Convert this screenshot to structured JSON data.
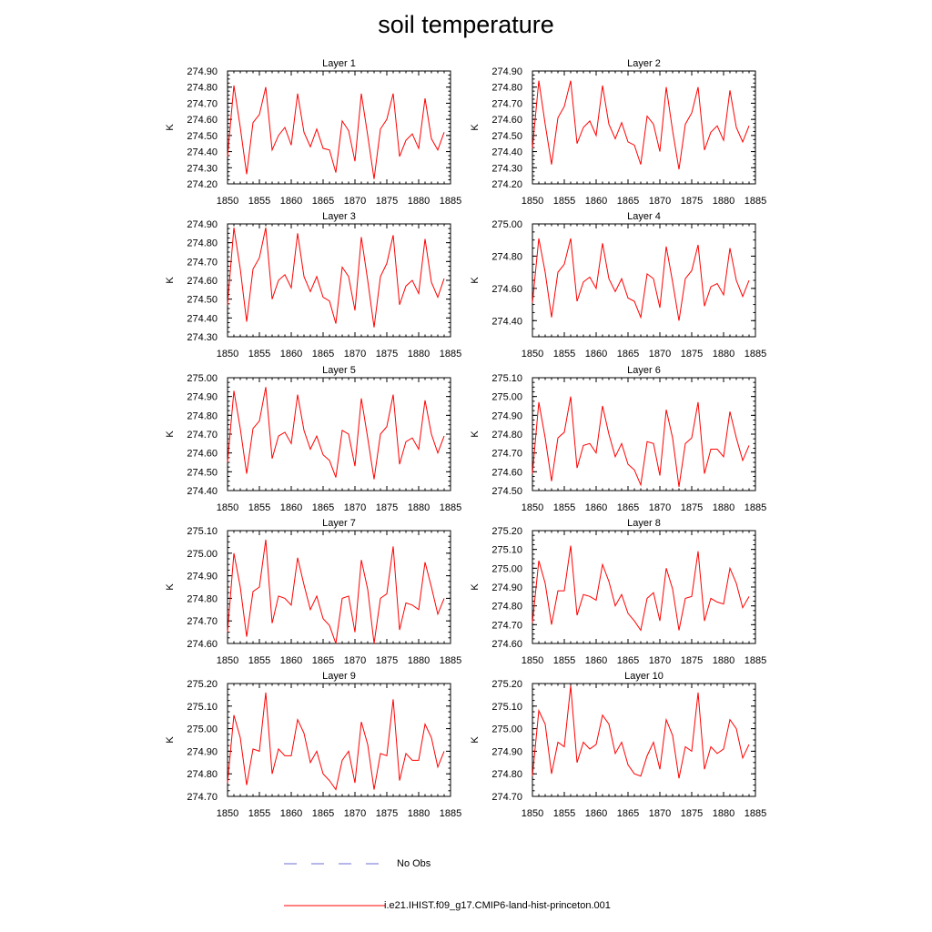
{
  "title": "soil temperature",
  "legend": {
    "entries": [
      {
        "label": "No Obs",
        "color": "#6d6dd6",
        "style": "dashed"
      },
      {
        "label": "i.e21.IHIST.f09_g17.CMIP6-land-hist-princeton.001",
        "color": "#ff0000",
        "style": "solid"
      }
    ]
  },
  "chart_data": [
    {
      "type": "line",
      "title": "Layer 1",
      "ylabel": "K",
      "xlim": [
        1850,
        1885
      ],
      "ylim": [
        274.2,
        274.9
      ],
      "xticks": [
        1850,
        1855,
        1860,
        1865,
        1870,
        1875,
        1880,
        1885
      ],
      "yticks": [
        274.2,
        274.3,
        274.4,
        274.5,
        274.6,
        274.7,
        274.8,
        274.9
      ],
      "ytick_decimals": 2,
      "x": [
        1850,
        1851,
        1852,
        1853,
        1854,
        1855,
        1856,
        1857,
        1858,
        1859,
        1860,
        1861,
        1862,
        1863,
        1864,
        1865,
        1866,
        1867,
        1868,
        1869,
        1870,
        1871,
        1872,
        1873,
        1874,
        1875,
        1876,
        1877,
        1878,
        1879,
        1880,
        1881,
        1882,
        1883,
        1884
      ],
      "series": [
        {
          "color": "#ff0000",
          "values": [
            274.37,
            274.81,
            274.55,
            274.26,
            274.58,
            274.63,
            274.8,
            274.41,
            274.5,
            274.55,
            274.44,
            274.76,
            274.52,
            274.43,
            274.54,
            274.42,
            274.41,
            274.27,
            274.59,
            274.53,
            274.34,
            274.76,
            274.5,
            274.23,
            274.54,
            274.6,
            274.76,
            274.37,
            274.47,
            274.51,
            274.42,
            274.73,
            274.48,
            274.41,
            274.52
          ]
        }
      ]
    },
    {
      "type": "line",
      "title": "Layer 2",
      "ylabel": "K",
      "xlim": [
        1850,
        1885
      ],
      "ylim": [
        274.2,
        274.9
      ],
      "xticks": [
        1850,
        1855,
        1860,
        1865,
        1870,
        1875,
        1880,
        1885
      ],
      "yticks": [
        274.2,
        274.3,
        274.4,
        274.5,
        274.6,
        274.7,
        274.8,
        274.9
      ],
      "ytick_decimals": 2,
      "x": [
        1850,
        1851,
        1852,
        1853,
        1854,
        1855,
        1856,
        1857,
        1858,
        1859,
        1860,
        1861,
        1862,
        1863,
        1864,
        1865,
        1866,
        1867,
        1868,
        1869,
        1870,
        1871,
        1872,
        1873,
        1874,
        1875,
        1876,
        1877,
        1878,
        1879,
        1880,
        1881,
        1882,
        1883,
        1884
      ],
      "series": [
        {
          "color": "#ff0000",
          "values": [
            274.42,
            274.84,
            274.57,
            274.32,
            274.61,
            274.68,
            274.84,
            274.45,
            274.55,
            274.59,
            274.5,
            274.81,
            274.57,
            274.48,
            274.58,
            274.46,
            274.44,
            274.32,
            274.62,
            274.57,
            274.4,
            274.8,
            274.53,
            274.29,
            274.57,
            274.64,
            274.8,
            274.41,
            274.52,
            274.56,
            274.47,
            274.78,
            274.55,
            274.46,
            274.56
          ]
        }
      ]
    },
    {
      "type": "line",
      "title": "Layer 3",
      "ylabel": "K",
      "xlim": [
        1850,
        1885
      ],
      "ylim": [
        274.3,
        274.9
      ],
      "xticks": [
        1850,
        1855,
        1860,
        1865,
        1870,
        1875,
        1880,
        1885
      ],
      "yticks": [
        274.3,
        274.4,
        274.5,
        274.6,
        274.7,
        274.8,
        274.9
      ],
      "ytick_decimals": 2,
      "x": [
        1850,
        1851,
        1852,
        1853,
        1854,
        1855,
        1856,
        1857,
        1858,
        1859,
        1860,
        1861,
        1862,
        1863,
        1864,
        1865,
        1866,
        1867,
        1868,
        1869,
        1870,
        1871,
        1872,
        1873,
        1874,
        1875,
        1876,
        1877,
        1878,
        1879,
        1880,
        1881,
        1882,
        1883,
        1884
      ],
      "series": [
        {
          "color": "#ff0000",
          "values": [
            274.47,
            274.88,
            274.66,
            274.38,
            274.66,
            274.72,
            274.88,
            274.5,
            274.6,
            274.63,
            274.56,
            274.85,
            274.62,
            274.54,
            274.62,
            274.51,
            274.49,
            274.37,
            274.67,
            274.62,
            274.44,
            274.83,
            274.6,
            274.35,
            274.62,
            274.69,
            274.84,
            274.47,
            274.57,
            274.6,
            274.53,
            274.82,
            274.59,
            274.51,
            274.61
          ]
        }
      ]
    },
    {
      "type": "line",
      "title": "Layer 4",
      "ylabel": "K",
      "xlim": [
        1850,
        1885
      ],
      "ylim": [
        274.3,
        275.0
      ],
      "xticks": [
        1850,
        1855,
        1860,
        1865,
        1870,
        1875,
        1880,
        1885
      ],
      "yticks": [
        274.4,
        274.6,
        274.8,
        275.0
      ],
      "ytick_decimals": 2,
      "x": [
        1850,
        1851,
        1852,
        1853,
        1854,
        1855,
        1856,
        1857,
        1858,
        1859,
        1860,
        1861,
        1862,
        1863,
        1864,
        1865,
        1866,
        1867,
        1868,
        1869,
        1870,
        1871,
        1872,
        1873,
        1874,
        1875,
        1876,
        1877,
        1878,
        1879,
        1880,
        1881,
        1882,
        1883,
        1884
      ],
      "series": [
        {
          "color": "#ff0000",
          "values": [
            274.51,
            274.91,
            274.7,
            274.42,
            274.7,
            274.75,
            274.91,
            274.52,
            274.64,
            274.67,
            274.6,
            274.88,
            274.66,
            274.58,
            274.66,
            274.54,
            274.52,
            274.42,
            274.69,
            274.66,
            274.48,
            274.86,
            274.64,
            274.4,
            274.66,
            274.71,
            274.87,
            274.49,
            274.61,
            274.63,
            274.56,
            274.85,
            274.65,
            274.55,
            274.65
          ]
        }
      ]
    },
    {
      "type": "line",
      "title": "Layer 5",
      "ylabel": "K",
      "xlim": [
        1850,
        1885
      ],
      "ylim": [
        274.4,
        275.0
      ],
      "xticks": [
        1850,
        1855,
        1860,
        1865,
        1870,
        1875,
        1880,
        1885
      ],
      "yticks": [
        274.4,
        274.5,
        274.6,
        274.7,
        274.8,
        274.9,
        275.0
      ],
      "ytick_decimals": 2,
      "x": [
        1850,
        1851,
        1852,
        1853,
        1854,
        1855,
        1856,
        1857,
        1858,
        1859,
        1860,
        1861,
        1862,
        1863,
        1864,
        1865,
        1866,
        1867,
        1868,
        1869,
        1870,
        1871,
        1872,
        1873,
        1874,
        1875,
        1876,
        1877,
        1878,
        1879,
        1880,
        1881,
        1882,
        1883,
        1884
      ],
      "series": [
        {
          "color": "#ff0000",
          "values": [
            274.55,
            274.93,
            274.73,
            274.49,
            274.73,
            274.77,
            274.95,
            274.57,
            274.69,
            274.71,
            274.65,
            274.91,
            274.72,
            274.62,
            274.69,
            274.59,
            274.56,
            274.47,
            274.72,
            274.7,
            274.53,
            274.89,
            274.68,
            274.46,
            274.7,
            274.74,
            274.91,
            274.54,
            274.66,
            274.68,
            274.62,
            274.88,
            274.7,
            274.6,
            274.69
          ]
        }
      ]
    },
    {
      "type": "line",
      "title": "Layer 6",
      "ylabel": "K",
      "xlim": [
        1850,
        1885
      ],
      "ylim": [
        274.5,
        275.1
      ],
      "xticks": [
        1850,
        1855,
        1860,
        1865,
        1870,
        1875,
        1880,
        1885
      ],
      "yticks": [
        274.5,
        274.6,
        274.7,
        274.8,
        274.9,
        275.0,
        275.1
      ],
      "ytick_decimals": 2,
      "x": [
        1850,
        1851,
        1852,
        1853,
        1854,
        1855,
        1856,
        1857,
        1858,
        1859,
        1860,
        1861,
        1862,
        1863,
        1864,
        1865,
        1866,
        1867,
        1868,
        1869,
        1870,
        1871,
        1872,
        1873,
        1874,
        1875,
        1876,
        1877,
        1878,
        1879,
        1880,
        1881,
        1882,
        1883,
        1884
      ],
      "series": [
        {
          "color": "#ff0000",
          "values": [
            274.59,
            274.97,
            274.78,
            274.55,
            274.78,
            274.81,
            275.0,
            274.62,
            274.74,
            274.75,
            274.7,
            274.95,
            274.8,
            274.68,
            274.75,
            274.64,
            274.61,
            274.53,
            274.76,
            274.75,
            274.58,
            274.93,
            274.78,
            274.52,
            274.75,
            274.78,
            274.97,
            274.59,
            274.72,
            274.72,
            274.68,
            274.92,
            274.78,
            274.66,
            274.74
          ]
        }
      ]
    },
    {
      "type": "line",
      "title": "Layer 7",
      "ylabel": "K",
      "xlim": [
        1850,
        1885
      ],
      "ylim": [
        274.6,
        275.1
      ],
      "xticks": [
        1850,
        1855,
        1860,
        1865,
        1870,
        1875,
        1880,
        1885
      ],
      "yticks": [
        274.6,
        274.7,
        274.8,
        274.9,
        275.0,
        275.1
      ],
      "ytick_decimals": 2,
      "x": [
        1850,
        1851,
        1852,
        1853,
        1854,
        1855,
        1856,
        1857,
        1858,
        1859,
        1860,
        1861,
        1862,
        1863,
        1864,
        1865,
        1866,
        1867,
        1868,
        1869,
        1870,
        1871,
        1872,
        1873,
        1874,
        1875,
        1876,
        1877,
        1878,
        1879,
        1880,
        1881,
        1882,
        1883,
        1884
      ],
      "series": [
        {
          "color": "#ff0000",
          "values": [
            274.65,
            275.0,
            274.85,
            274.63,
            274.83,
            274.85,
            275.06,
            274.69,
            274.81,
            274.8,
            274.77,
            274.98,
            274.86,
            274.75,
            274.81,
            274.71,
            274.68,
            274.6,
            274.8,
            274.81,
            274.65,
            274.97,
            274.84,
            274.6,
            274.8,
            274.82,
            275.03,
            274.66,
            274.78,
            274.77,
            274.75,
            274.96,
            274.85,
            274.73,
            274.8
          ]
        }
      ]
    },
    {
      "type": "line",
      "title": "Layer 8",
      "ylabel": "K",
      "xlim": [
        1850,
        1885
      ],
      "ylim": [
        274.6,
        275.2
      ],
      "xticks": [
        1850,
        1855,
        1860,
        1865,
        1870,
        1875,
        1880,
        1885
      ],
      "yticks": [
        274.6,
        274.7,
        274.8,
        274.9,
        275.0,
        275.1,
        275.2
      ],
      "ytick_decimals": 2,
      "x": [
        1850,
        1851,
        1852,
        1853,
        1854,
        1855,
        1856,
        1857,
        1858,
        1859,
        1860,
        1861,
        1862,
        1863,
        1864,
        1865,
        1866,
        1867,
        1868,
        1869,
        1870,
        1871,
        1872,
        1873,
        1874,
        1875,
        1876,
        1877,
        1878,
        1879,
        1880,
        1881,
        1882,
        1883,
        1884
      ],
      "series": [
        {
          "color": "#ff0000",
          "values": [
            274.71,
            275.04,
            274.92,
            274.7,
            274.88,
            274.88,
            275.12,
            274.75,
            274.86,
            274.85,
            274.83,
            275.02,
            274.93,
            274.8,
            274.86,
            274.76,
            274.72,
            274.67,
            274.84,
            274.87,
            274.72,
            275.0,
            274.89,
            274.67,
            274.84,
            274.85,
            275.09,
            274.72,
            274.84,
            274.82,
            274.81,
            275.0,
            274.92,
            274.79,
            274.85
          ]
        }
      ]
    },
    {
      "type": "line",
      "title": "Layer 9",
      "ylabel": "K",
      "xlim": [
        1850,
        1885
      ],
      "ylim": [
        274.7,
        275.2
      ],
      "xticks": [
        1850,
        1855,
        1860,
        1865,
        1870,
        1875,
        1880,
        1885
      ],
      "yticks": [
        274.7,
        274.8,
        274.9,
        275.0,
        275.1,
        275.2
      ],
      "ytick_decimals": 2,
      "x": [
        1850,
        1851,
        1852,
        1853,
        1854,
        1855,
        1856,
        1857,
        1858,
        1859,
        1860,
        1861,
        1862,
        1863,
        1864,
        1865,
        1866,
        1867,
        1868,
        1869,
        1870,
        1871,
        1872,
        1873,
        1874,
        1875,
        1876,
        1877,
        1878,
        1879,
        1880,
        1881,
        1882,
        1883,
        1884
      ],
      "series": [
        {
          "color": "#ff0000",
          "values": [
            274.76,
            275.06,
            274.96,
            274.75,
            274.91,
            274.9,
            275.16,
            274.8,
            274.91,
            274.88,
            274.88,
            275.04,
            274.98,
            274.85,
            274.9,
            274.8,
            274.77,
            274.73,
            274.86,
            274.9,
            274.76,
            275.03,
            274.93,
            274.73,
            274.89,
            274.88,
            275.13,
            274.77,
            274.89,
            274.86,
            274.86,
            275.02,
            274.96,
            274.83,
            274.9
          ]
        }
      ]
    },
    {
      "type": "line",
      "title": "Layer 10",
      "ylabel": "K",
      "xlim": [
        1850,
        1885
      ],
      "ylim": [
        274.7,
        275.2
      ],
      "xticks": [
        1850,
        1855,
        1860,
        1865,
        1870,
        1875,
        1880,
        1885
      ],
      "yticks": [
        274.7,
        274.8,
        274.9,
        275.0,
        275.1,
        275.2
      ],
      "ytick_decimals": 2,
      "x": [
        1850,
        1851,
        1852,
        1853,
        1854,
        1855,
        1856,
        1857,
        1858,
        1859,
        1860,
        1861,
        1862,
        1863,
        1864,
        1865,
        1866,
        1867,
        1868,
        1869,
        1870,
        1871,
        1872,
        1873,
        1874,
        1875,
        1876,
        1877,
        1878,
        1879,
        1880,
        1881,
        1882,
        1883,
        1884
      ],
      "series": [
        {
          "color": "#ff0000",
          "values": [
            274.79,
            275.08,
            275.02,
            274.8,
            274.94,
            274.92,
            275.19,
            274.85,
            274.94,
            274.91,
            274.93,
            275.06,
            275.02,
            274.89,
            274.94,
            274.84,
            274.8,
            274.79,
            274.88,
            274.94,
            274.82,
            275.04,
            274.97,
            274.78,
            274.92,
            274.9,
            275.16,
            274.82,
            274.92,
            274.89,
            274.91,
            275.04,
            275.0,
            274.87,
            274.93
          ]
        }
      ]
    }
  ]
}
